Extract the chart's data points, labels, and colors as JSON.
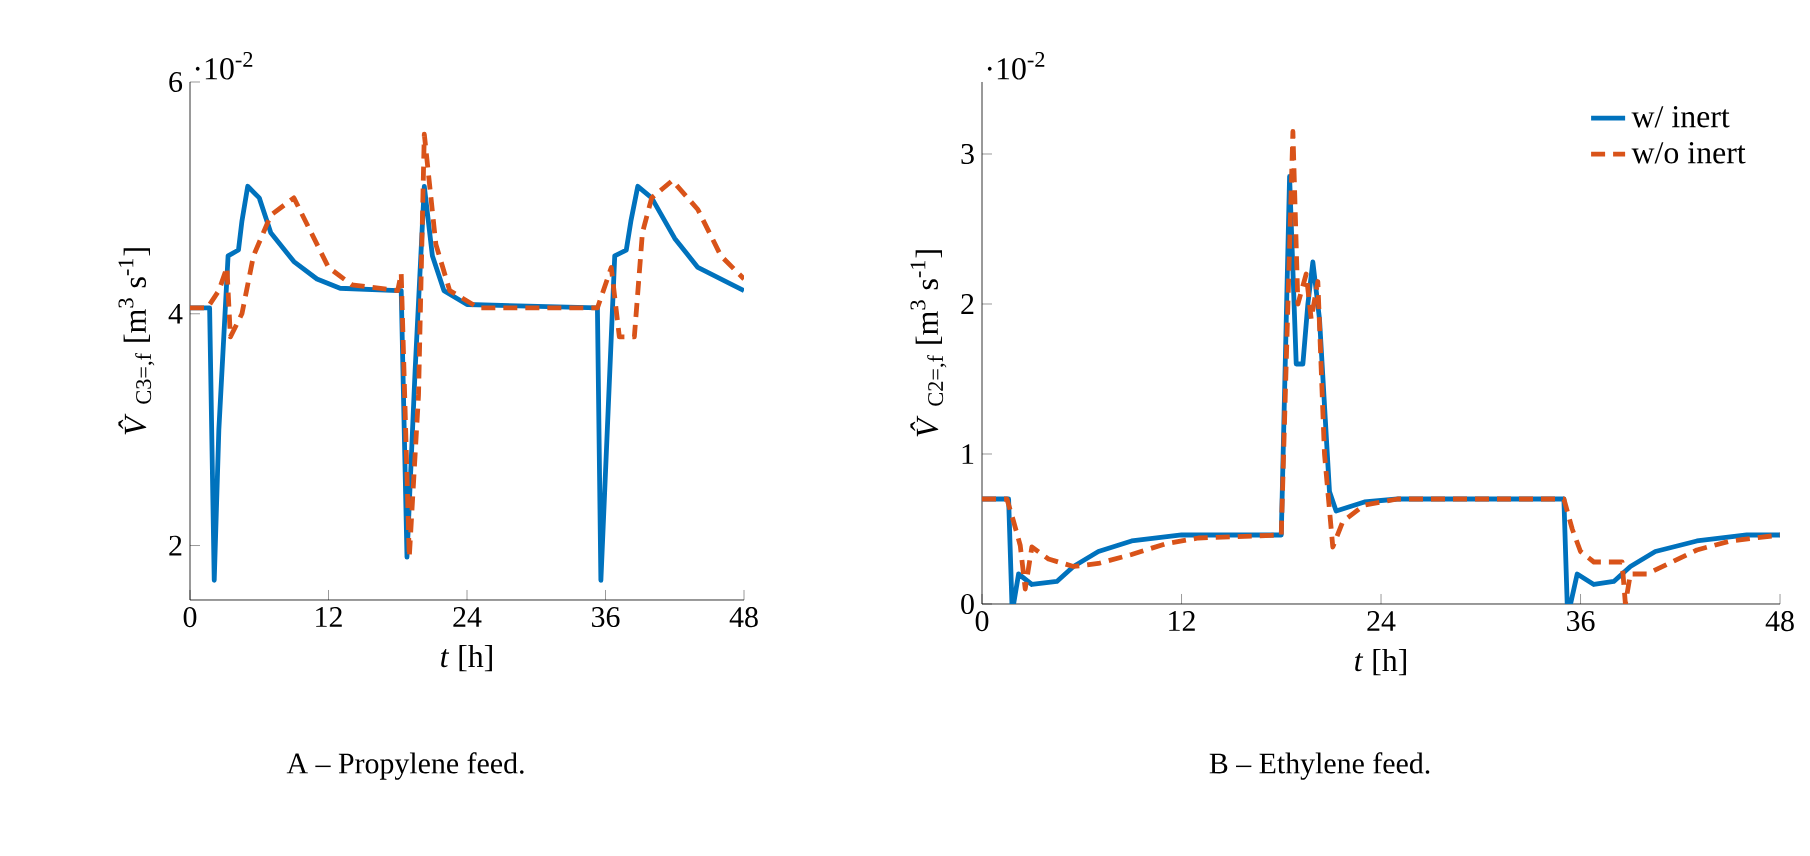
{
  "chart_data": [
    {
      "type": "line",
      "xlabel": "*t*    [h]",
      "ylabel": "*V̂*$_{C3=,f}$ [m$^{3}$ s$^{-1}$]",
      "xlim": [
        0,
        48
      ],
      "ylim": [
        1.53,
        6
      ],
      "xticks": [
        0,
        12,
        24,
        36,
        48
      ],
      "yticks": [
        2,
        4,
        6
      ],
      "grid": false,
      "legend": false,
      "annotations": [
        "·10$^{-2}$",
        "A – Propylene feed."
      ],
      "series": [
        {
          "color": "#0072bd",
          "line_style": "solid",
          "x": [
            0,
            1.7,
            2.1,
            2.5,
            3.3,
            4.2,
            4.5,
            5.0,
            6,
            7,
            9,
            11,
            13,
            18,
            18.3,
            18.8,
            19.5,
            20.3,
            21,
            22,
            24,
            35.3,
            35.6,
            36.8,
            37.8,
            38.2,
            38.8,
            40,
            42,
            44,
            47,
            48
          ],
          "values": [
            4.05,
            4.05,
            1.7,
            3.0,
            4.5,
            4.55,
            4.8,
            5.1,
            5.0,
            4.7,
            4.45,
            4.3,
            4.22,
            4.2,
            4.2,
            1.9,
            3.5,
            5.1,
            4.5,
            4.2,
            4.08,
            4.05,
            1.7,
            4.5,
            4.55,
            4.8,
            5.1,
            5.0,
            4.65,
            4.4,
            4.25,
            4.2
          ]
        },
        {
          "color": "#d95319",
          "line_style": "dashed",
          "x": [
            0,
            1.5,
            2.5,
            3.2,
            3.5,
            4.5,
            5.5,
            7,
            9,
            10.5,
            12,
            14,
            18,
            18.3,
            19.0,
            19.8,
            20.3,
            21.3,
            22.5,
            25,
            35.3,
            36.5,
            37.2,
            38.5,
            39.2,
            40,
            41.8,
            44,
            46,
            48
          ],
          "values": [
            4.05,
            4.05,
            4.2,
            4.4,
            3.8,
            4.0,
            4.5,
            4.85,
            5.0,
            4.7,
            4.4,
            4.25,
            4.2,
            4.35,
            1.9,
            3.3,
            5.55,
            4.6,
            4.2,
            4.05,
            4.05,
            4.4,
            3.8,
            3.8,
            4.7,
            5.0,
            5.15,
            4.9,
            4.5,
            4.3
          ]
        }
      ]
    },
    {
      "type": "line",
      "xlabel": "*t*    [h]",
      "ylabel": "*V̂*$_{C2=,f}$ [m$^{3}$ s$^{-1}$]",
      "xlim": [
        0,
        48
      ],
      "ylim": [
        0,
        3.48
      ],
      "xticks": [
        0,
        12,
        24,
        36,
        48
      ],
      "yticks": [
        0,
        1,
        2,
        3
      ],
      "grid": false,
      "legend": "top right",
      "annotations": [
        "·10$^{-2}$",
        "B – Ethylene feed."
      ],
      "series": [
        {
          "name": "w/ inert",
          "color": "#0072bd",
          "line_style": "solid",
          "x": [
            0,
            1.6,
            1.8,
            1.9,
            2.2,
            3,
            4.5,
            5.5,
            7,
            9,
            12,
            18,
            18.5,
            18.9,
            19.3,
            19.6,
            19.9,
            20.3,
            20.9,
            21.3,
            23,
            25,
            35,
            35.2,
            35.4,
            35.8,
            36.8,
            38,
            39,
            40.5,
            43,
            46,
            48
          ],
          "values": [
            0.7,
            0.7,
            0,
            0,
            0.2,
            0.13,
            0.15,
            0.25,
            0.35,
            0.42,
            0.46,
            0.46,
            2.85,
            1.6,
            1.6,
            2.0,
            2.28,
            1.9,
            0.75,
            0.62,
            0.68,
            0.7,
            0.7,
            0,
            0,
            0.2,
            0.13,
            0.15,
            0.25,
            0.35,
            0.42,
            0.46,
            0.46
          ]
        },
        {
          "name": "w/o inert",
          "color": "#d95319",
          "line_style": "dashed",
          "x": [
            0,
            1.5,
            1.9,
            2.3,
            2.6,
            3,
            4,
            5.5,
            7,
            9,
            11,
            13,
            18,
            18.7,
            19.0,
            19.5,
            19.8,
            20.2,
            20.6,
            21.1,
            21.7,
            23,
            25,
            35,
            35.5,
            36,
            36.8,
            38.5,
            38.7,
            39,
            40,
            41.5,
            43,
            45,
            48
          ],
          "values": [
            0.7,
            0.7,
            0.55,
            0.39,
            0.1,
            0.38,
            0.3,
            0.25,
            0.27,
            0.33,
            0.4,
            0.44,
            0.46,
            3.15,
            2.0,
            2.2,
            1.9,
            2.15,
            1.0,
            0.38,
            0.55,
            0.66,
            0.7,
            0.7,
            0.5,
            0.35,
            0.28,
            0.28,
            0.0,
            0.2,
            0.2,
            0.28,
            0.36,
            0.42,
            0.46
          ]
        }
      ]
    }
  ]
}
